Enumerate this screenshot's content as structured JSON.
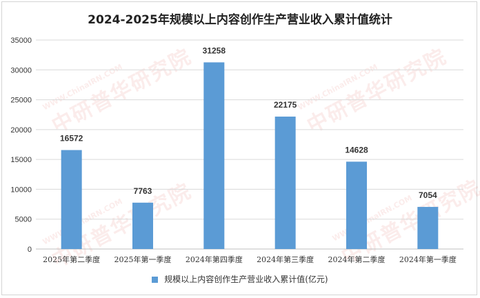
{
  "chart_data": {
    "type": "bar",
    "title": "2024-2025年规模以上内容创作生产营业收入累计值统计",
    "categories": [
      "2025年第二季度",
      "2025年第一季度",
      "2024年第四季度",
      "2024年第三季度",
      "2024年第二季度",
      "2024年第一季度"
    ],
    "series": [
      {
        "name": "规模以上内容创作生产营业收入累计值(亿元)",
        "values": [
          16572,
          7763,
          31258,
          22175,
          14628,
          7054
        ]
      }
    ],
    "ylim": [
      0,
      35000
    ],
    "yticks": [
      0,
      5000,
      10000,
      15000,
      20000,
      25000,
      30000,
      35000
    ],
    "grid": true,
    "legend_position": "bottom",
    "bar_color": "#5b9bd5"
  },
  "watermark": {
    "url": "WWW.ChinaIRN.COM",
    "cn": "中研普华研究院"
  }
}
